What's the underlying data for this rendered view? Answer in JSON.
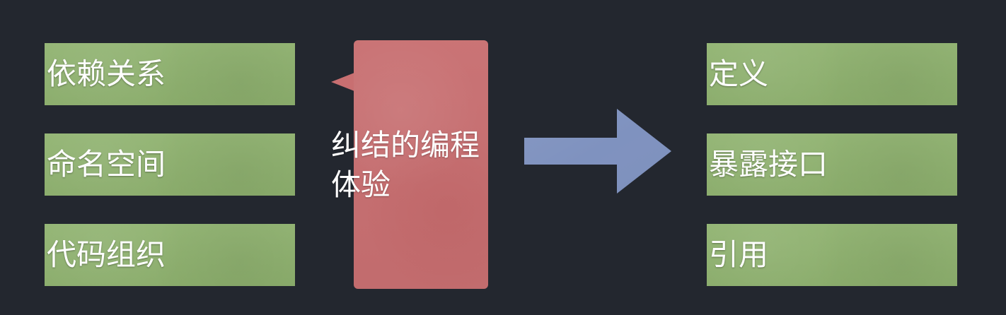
{
  "left_items": [
    {
      "label": "依赖关系"
    },
    {
      "label": "命名空间"
    },
    {
      "label": "代码组织"
    }
  ],
  "center_callout": {
    "label": "纠结的编程体验"
  },
  "right_items": [
    {
      "label": "定义"
    },
    {
      "label": "暴露接口"
    },
    {
      "label": "引用"
    }
  ],
  "visual": {
    "background_color": "#23272f",
    "green_box_color": "#8fb26f",
    "callout_color": "#c86f71",
    "arrow_color": "#7f92bf",
    "text_color": "#ffffff",
    "arrow_icon": "right-arrow-icon"
  }
}
